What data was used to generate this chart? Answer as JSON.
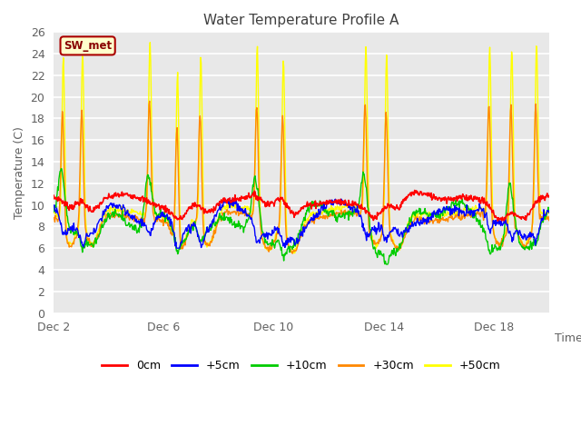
{
  "title": "Water Temperature Profile A",
  "xlabel": "Time",
  "ylabel": "Temperature (C)",
  "ylim": [
    0,
    26
  ],
  "yticks": [
    0,
    2,
    4,
    6,
    8,
    10,
    12,
    14,
    16,
    18,
    20,
    22,
    24,
    26
  ],
  "xtick_labels": [
    "Dec 2",
    "Dec 6",
    "Dec 10",
    "Dec 14",
    "Dec 18"
  ],
  "xtick_positions": [
    2,
    6,
    10,
    14,
    18
  ],
  "legend_labels": [
    "0cm",
    "+5cm",
    "+10cm",
    "+30cm",
    "+50cm"
  ],
  "legend_colors": [
    "#ff0000",
    "#0000ff",
    "#00cc00",
    "#ff8800",
    "#ffff00"
  ],
  "sw_met_box_facecolor": "#ffffcc",
  "sw_met_border_color": "#aa0000",
  "sw_met_text_color": "#880000",
  "background_color": "#ffffff",
  "plot_bg_color": "#e8e8e8",
  "grid_color": "#ffffff",
  "title_color": "#404040",
  "axis_label_color": "#606060",
  "tick_label_color": "#606060",
  "spike_positions_yellow": [
    2.35,
    3.05,
    5.5,
    6.5,
    7.35,
    9.4,
    10.35,
    13.35,
    14.1,
    17.85,
    18.65,
    19.55
  ],
  "spike_positions_orange": [
    2.32,
    3.02,
    5.48,
    6.48,
    7.32,
    9.38,
    10.32,
    13.32,
    14.08,
    17.82,
    18.62,
    19.52
  ],
  "spike_positions_green": [
    2.3,
    5.45,
    9.35,
    13.3,
    18.6
  ],
  "dip_positions": [
    2.6,
    3.4,
    6.6,
    7.6,
    9.8,
    10.7,
    13.7,
    14.5,
    18.2,
    19.1
  ]
}
